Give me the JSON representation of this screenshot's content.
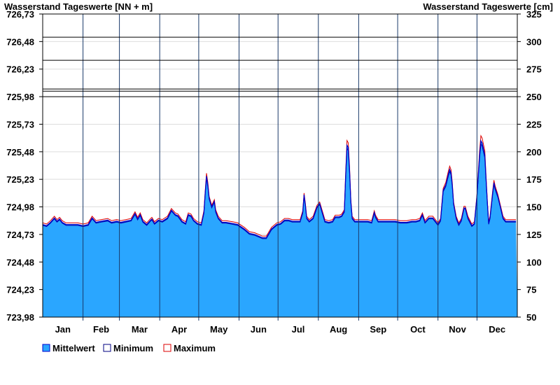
{
  "chart_data": {
    "type": "area",
    "title_left": "Wasserstand Tageswerte [NN + m]",
    "title_right": "Wasserstand Tageswerte [cm]",
    "y_left_ticks": [
      "726,73",
      "726,48",
      "726,23",
      "725,98",
      "725,73",
      "725,48",
      "725,23",
      "724,98",
      "724,73",
      "724,48",
      "724,23",
      "723,98"
    ],
    "y_right_ticks": [
      "325",
      "300",
      "275",
      "250",
      "225",
      "200",
      "175",
      "150",
      "125",
      "100",
      "75",
      "50"
    ],
    "ylim_cm": [
      50,
      325
    ],
    "ylim_nn": [
      723.98,
      726.73
    ],
    "months": [
      "Jan",
      "Feb",
      "Mar",
      "Apr",
      "May",
      "Jun",
      "Jul",
      "Aug",
      "Sep",
      "Oct",
      "Nov",
      "Dec"
    ],
    "reference_levels_cm": [
      304,
      283,
      257,
      255,
      250
    ],
    "grid": true,
    "legend": [
      {
        "key": "mean",
        "label": "Mittelwert",
        "fill": "#2aa6ff",
        "stroke": "#0000cc"
      },
      {
        "key": "min",
        "label": "Minimum",
        "fill": "#ffffff",
        "stroke": "#000080"
      },
      {
        "key": "max",
        "label": "Maximum",
        "fill": "#ffffff",
        "stroke": "#dd0000"
      }
    ],
    "colors": {
      "mean_fill": "#2aa6ff",
      "min_line": "#0000aa",
      "max_line": "#dd0000",
      "grid": "#dddddd"
    },
    "series_mean_keypoints_cm": [
      [
        0,
        134
      ],
      [
        3,
        133
      ],
      [
        6,
        136
      ],
      [
        9,
        140
      ],
      [
        11,
        137
      ],
      [
        13,
        139
      ],
      [
        15,
        136
      ],
      [
        18,
        134
      ],
      [
        22,
        134
      ],
      [
        27,
        134
      ],
      [
        31,
        133
      ],
      [
        35,
        134
      ],
      [
        38,
        140
      ],
      [
        41,
        136
      ],
      [
        45,
        137
      ],
      [
        50,
        138
      ],
      [
        53,
        136
      ],
      [
        57,
        137
      ],
      [
        60,
        136
      ],
      [
        64,
        137
      ],
      [
        68,
        138
      ],
      [
        71,
        144
      ],
      [
        73,
        139
      ],
      [
        75,
        143
      ],
      [
        77,
        137
      ],
      [
        80,
        134
      ],
      [
        83,
        138
      ],
      [
        84,
        139
      ],
      [
        86,
        135
      ],
      [
        89,
        138
      ],
      [
        92,
        137
      ],
      [
        96,
        140
      ],
      [
        99,
        147
      ],
      [
        102,
        143
      ],
      [
        104,
        142
      ],
      [
        107,
        137
      ],
      [
        110,
        135
      ],
      [
        112,
        143
      ],
      [
        114,
        142
      ],
      [
        116,
        138
      ],
      [
        119,
        135
      ],
      [
        122,
        134
      ],
      [
        124,
        145
      ],
      [
        125,
        163
      ],
      [
        126,
        178
      ],
      [
        127,
        170
      ],
      [
        128,
        158
      ],
      [
        130,
        150
      ],
      [
        132,
        155
      ],
      [
        133,
        146
      ],
      [
        135,
        140
      ],
      [
        138,
        136
      ],
      [
        141,
        136
      ],
      [
        146,
        135
      ],
      [
        150,
        134
      ],
      [
        155,
        130
      ],
      [
        159,
        126
      ],
      [
        163,
        125
      ],
      [
        167,
        123
      ],
      [
        169,
        122
      ],
      [
        172,
        122
      ],
      [
        176,
        130
      ],
      [
        180,
        134
      ],
      [
        183,
        135
      ],
      [
        186,
        138
      ],
      [
        189,
        138
      ],
      [
        192,
        137
      ],
      [
        195,
        137
      ],
      [
        198,
        137
      ],
      [
        200,
        145
      ],
      [
        201,
        161
      ],
      [
        202,
        152
      ],
      [
        203,
        140
      ],
      [
        205,
        137
      ],
      [
        208,
        140
      ],
      [
        211,
        150
      ],
      [
        213,
        153
      ],
      [
        215,
        145
      ],
      [
        217,
        137
      ],
      [
        220,
        136
      ],
      [
        223,
        137
      ],
      [
        225,
        141
      ],
      [
        228,
        141
      ],
      [
        230,
        142
      ],
      [
        232,
        146
      ],
      [
        233,
        178
      ],
      [
        234,
        206
      ],
      [
        235,
        204
      ],
      [
        236,
        183
      ],
      [
        237,
        155
      ],
      [
        238,
        140
      ],
      [
        240,
        137
      ],
      [
        243,
        137
      ],
      [
        246,
        137
      ],
      [
        250,
        137
      ],
      [
        253,
        136
      ],
      [
        255,
        145
      ],
      [
        256,
        141
      ],
      [
        258,
        137
      ],
      [
        262,
        137
      ],
      [
        267,
        137
      ],
      [
        271,
        137
      ],
      [
        275,
        136
      ],
      [
        280,
        136
      ],
      [
        284,
        137
      ],
      [
        287,
        137
      ],
      [
        290,
        138
      ],
      [
        292,
        143
      ],
      [
        294,
        136
      ],
      [
        297,
        140
      ],
      [
        300,
        140
      ],
      [
        302,
        137
      ],
      [
        304,
        134
      ],
      [
        306,
        138
      ],
      [
        308,
        165
      ],
      [
        310,
        170
      ],
      [
        312,
        180
      ],
      [
        313,
        184
      ],
      [
        314,
        181
      ],
      [
        315,
        170
      ],
      [
        316,
        153
      ],
      [
        318,
        140
      ],
      [
        320,
        134
      ],
      [
        322,
        138
      ],
      [
        324,
        149
      ],
      [
        325,
        149
      ],
      [
        327,
        140
      ],
      [
        330,
        133
      ],
      [
        332,
        135
      ],
      [
        334,
        160
      ],
      [
        336,
        197
      ],
      [
        337,
        210
      ],
      [
        338,
        208
      ],
      [
        340,
        197
      ],
      [
        341,
        175
      ],
      [
        342,
        153
      ],
      [
        343,
        135
      ],
      [
        344,
        140
      ],
      [
        346,
        162
      ],
      [
        347,
        172
      ],
      [
        348,
        167
      ],
      [
        350,
        160
      ],
      [
        352,
        150
      ],
      [
        354,
        140
      ],
      [
        356,
        137
      ],
      [
        359,
        137
      ],
      [
        364,
        137
      ]
    ]
  }
}
